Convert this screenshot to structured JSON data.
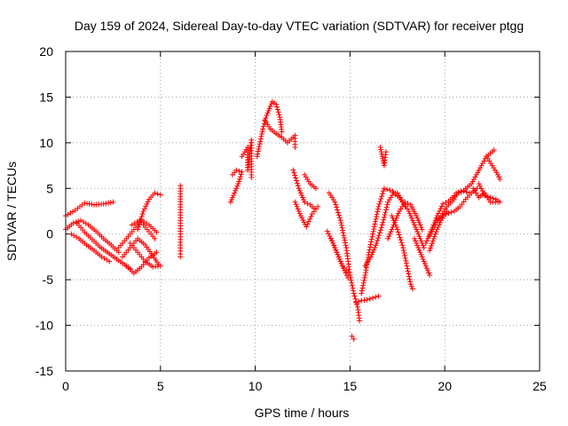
{
  "chart_data": {
    "type": "scatter",
    "title": "Day 159 of 2024, Sidereal Day-to-day VTEC variation (SDTVAR) for receiver ptgg",
    "xlabel": "GPS time / hours",
    "ylabel": "SDTVAR / TECUs",
    "xlim": [
      0,
      25
    ],
    "ylim": [
      -15,
      20
    ],
    "xticks": [
      0,
      5,
      10,
      15,
      20,
      25
    ],
    "yticks": [
      -15,
      -10,
      -5,
      0,
      5,
      10,
      15,
      20
    ],
    "xtick_labels": [
      "0",
      "5",
      "10",
      "15",
      "20",
      "25"
    ],
    "ytick_labels": [
      "-15",
      "-10",
      "-5",
      "0",
      "5",
      "10",
      "15",
      "20"
    ],
    "grid": true,
    "marker": "+",
    "series_color": "#ff0000",
    "segments": [
      [
        [
          0.0,
          2.0
        ],
        [
          0.5,
          2.6
        ],
        [
          1.0,
          3.4
        ],
        [
          1.5,
          3.2
        ],
        [
          2.0,
          3.3
        ],
        [
          2.5,
          3.5
        ]
      ],
      [
        [
          0.0,
          0.5
        ],
        [
          0.4,
          1.2
        ],
        [
          0.8,
          1.5
        ],
        [
          1.2,
          1.0
        ],
        [
          1.6,
          0.3
        ],
        [
          2.0,
          -0.5
        ],
        [
          2.4,
          -1.2
        ],
        [
          2.8,
          -2.0
        ]
      ],
      [
        [
          0.3,
          0.0
        ],
        [
          0.7,
          -0.5
        ],
        [
          1.1,
          -1.2
        ],
        [
          1.5,
          -1.8
        ],
        [
          1.9,
          -2.5
        ],
        [
          2.3,
          -3.0
        ]
      ],
      [
        [
          0.6,
          1.2
        ],
        [
          1.0,
          0.2
        ],
        [
          1.4,
          -0.6
        ],
        [
          1.8,
          -1.4
        ],
        [
          2.2,
          -2.0
        ],
        [
          2.6,
          -2.6
        ],
        [
          3.0,
          -3.2
        ],
        [
          3.4,
          -3.8
        ]
      ],
      [
        [
          2.8,
          -1.5
        ],
        [
          3.2,
          -0.5
        ],
        [
          3.6,
          0.5
        ],
        [
          4.0,
          1.5
        ],
        [
          4.4,
          1.0
        ],
        [
          4.8,
          0.2
        ]
      ],
      [
        [
          3.0,
          -2.5
        ],
        [
          3.4,
          -1.5
        ],
        [
          3.8,
          -0.5
        ],
        [
          4.2,
          -1.2
        ],
        [
          4.6,
          -2.4
        ],
        [
          4.9,
          -3.3
        ]
      ],
      [
        [
          3.2,
          -3.5
        ],
        [
          3.6,
          -4.3
        ],
        [
          4.0,
          -3.6
        ],
        [
          4.4,
          -2.6
        ],
        [
          4.8,
          -2.0
        ]
      ],
      [
        [
          3.4,
          -1.0
        ],
        [
          3.8,
          -2.0
        ],
        [
          4.2,
          -3.0
        ],
        [
          4.6,
          -3.6
        ],
        [
          5.0,
          -3.5
        ]
      ],
      [
        [
          3.8,
          0.5
        ],
        [
          4.1,
          2.5
        ],
        [
          4.4,
          3.8
        ],
        [
          4.7,
          4.5
        ],
        [
          5.0,
          4.3
        ]
      ],
      [
        [
          3.5,
          1.0
        ],
        [
          3.9,
          1.5
        ],
        [
          4.3,
          0.5
        ],
        [
          4.7,
          -0.5
        ]
      ],
      [
        [
          6.05,
          5.3
        ],
        [
          6.05,
          1.5
        ],
        [
          6.05,
          1.2
        ],
        [
          6.05,
          -1.2
        ],
        [
          6.05,
          -2.5
        ]
      ],
      [
        [
          8.7,
          3.5
        ],
        [
          8.9,
          4.5
        ],
        [
          9.1,
          5.5
        ],
        [
          9.3,
          6.8
        ],
        [
          9.0,
          7.0
        ],
        [
          8.8,
          6.5
        ]
      ],
      [
        [
          9.3,
          8.5
        ],
        [
          9.6,
          9.5
        ],
        [
          9.6,
          7.0
        ],
        [
          9.8,
          10.3
        ],
        [
          9.8,
          6.2
        ]
      ],
      [
        [
          10.1,
          8.5
        ],
        [
          10.4,
          11.5
        ],
        [
          10.6,
          13.0
        ],
        [
          10.9,
          14.5
        ],
        [
          11.1,
          14.2
        ],
        [
          11.3,
          12.8
        ],
        [
          11.4,
          11.2
        ]
      ],
      [
        [
          10.5,
          12.5
        ],
        [
          10.8,
          11.5
        ],
        [
          11.1,
          11.0
        ],
        [
          11.4,
          10.6
        ],
        [
          11.7,
          10.0
        ],
        [
          12.1,
          10.8
        ],
        [
          12.1,
          9.5
        ]
      ],
      [
        [
          12.0,
          7.0
        ],
        [
          12.3,
          5.0
        ],
        [
          12.6,
          3.5
        ],
        [
          12.9,
          3.2
        ],
        [
          13.1,
          2.8
        ]
      ],
      [
        [
          12.1,
          3.5
        ],
        [
          12.4,
          2.0
        ],
        [
          12.7,
          0.8
        ],
        [
          13.0,
          2.2
        ],
        [
          13.3,
          3.0
        ]
      ],
      [
        [
          12.6,
          6.5
        ],
        [
          12.9,
          5.5
        ],
        [
          13.2,
          5.0
        ]
      ],
      [
        [
          13.9,
          4.5
        ],
        [
          14.2,
          3.5
        ],
        [
          14.5,
          1.5
        ],
        [
          14.8,
          -1.5
        ],
        [
          15.0,
          -4.5
        ],
        [
          15.2,
          -6.5
        ],
        [
          15.4,
          -8.0
        ],
        [
          15.5,
          -9.5
        ]
      ],
      [
        [
          13.8,
          0.3
        ],
        [
          14.1,
          -1.0
        ],
        [
          14.4,
          -2.5
        ],
        [
          14.7,
          -4.0
        ],
        [
          14.9,
          -4.8
        ]
      ],
      [
        [
          14.0,
          -0.5
        ],
        [
          14.3,
          -2.0
        ],
        [
          14.6,
          -3.5
        ],
        [
          14.9,
          -4.2
        ]
      ],
      [
        [
          15.1,
          -11.2
        ],
        [
          15.2,
          -11.5
        ]
      ],
      [
        [
          15.3,
          -7.5
        ],
        [
          15.6,
          -7.3
        ],
        [
          15.9,
          -7.2
        ],
        [
          16.2,
          -7.0
        ],
        [
          16.5,
          -6.8
        ]
      ],
      [
        [
          15.6,
          -6.5
        ],
        [
          15.8,
          -4.5
        ],
        [
          16.0,
          -2.0
        ],
        [
          16.2,
          0.0
        ],
        [
          16.5,
          3.0
        ],
        [
          16.8,
          5.0
        ],
        [
          17.1,
          4.8
        ],
        [
          17.4,
          4.5
        ]
      ],
      [
        [
          15.8,
          -3.5
        ],
        [
          16.1,
          -2.5
        ],
        [
          16.4,
          -1.0
        ],
        [
          16.7,
          1.0
        ],
        [
          17.0,
          3.5
        ],
        [
          17.3,
          4.5
        ],
        [
          17.6,
          4.0
        ],
        [
          17.9,
          3.0
        ]
      ],
      [
        [
          16.6,
          9.5
        ],
        [
          16.7,
          8.5
        ],
        [
          16.8,
          7.5
        ],
        [
          16.9,
          9.0
        ]
      ],
      [
        [
          17.0,
          -0.5
        ],
        [
          17.3,
          1.0
        ],
        [
          17.6,
          2.5
        ],
        [
          17.9,
          3.5
        ],
        [
          18.2,
          3.2
        ],
        [
          18.5,
          2.0
        ],
        [
          18.8,
          0.5
        ]
      ],
      [
        [
          17.2,
          2.0
        ],
        [
          17.5,
          0.5
        ],
        [
          17.8,
          -1.5
        ],
        [
          18.0,
          -3.5
        ],
        [
          18.2,
          -5.5
        ],
        [
          18.3,
          -6.0
        ]
      ],
      [
        [
          17.5,
          4.5
        ],
        [
          17.8,
          3.5
        ],
        [
          18.1,
          2.5
        ],
        [
          18.4,
          1.0
        ],
        [
          18.7,
          -0.5
        ],
        [
          18.9,
          -1.5
        ]
      ],
      [
        [
          18.4,
          -0.5
        ],
        [
          18.7,
          -2.0
        ],
        [
          19.0,
          -3.5
        ],
        [
          19.2,
          -4.5
        ]
      ],
      [
        [
          19.0,
          -1.0
        ],
        [
          19.3,
          0.5
        ],
        [
          19.6,
          2.0
        ],
        [
          19.9,
          3.3
        ],
        [
          20.2,
          3.6
        ],
        [
          20.5,
          4.2
        ]
      ],
      [
        [
          19.2,
          -0.2
        ],
        [
          19.5,
          1.0
        ],
        [
          19.8,
          2.0
        ],
        [
          20.1,
          3.0
        ],
        [
          20.4,
          3.6
        ],
        [
          20.7,
          4.5
        ],
        [
          21.0,
          4.7
        ],
        [
          21.3,
          4.5
        ]
      ],
      [
        [
          19.6,
          1.5
        ],
        [
          19.9,
          2.0
        ],
        [
          20.2,
          2.3
        ],
        [
          20.5,
          2.5
        ],
        [
          20.8,
          3.0
        ],
        [
          21.1,
          3.8
        ],
        [
          21.4,
          4.5
        ],
        [
          21.7,
          5.0
        ]
      ],
      [
        [
          20.6,
          4.5
        ],
        [
          21.0,
          4.8
        ],
        [
          21.4,
          5.5
        ],
        [
          21.8,
          7.0
        ],
        [
          22.2,
          8.5
        ],
        [
          22.6,
          9.2
        ]
      ],
      [
        [
          21.5,
          5.0
        ],
        [
          21.8,
          4.0
        ],
        [
          22.1,
          4.5
        ],
        [
          22.4,
          3.5
        ],
        [
          22.8,
          3.5
        ]
      ],
      [
        [
          21.8,
          5.5
        ],
        [
          22.1,
          4.2
        ],
        [
          22.4,
          4.0
        ],
        [
          22.7,
          3.8
        ],
        [
          22.9,
          3.5
        ]
      ],
      [
        [
          22.2,
          8.5
        ],
        [
          22.5,
          7.5
        ],
        [
          22.8,
          6.5
        ],
        [
          22.9,
          6.0
        ]
      ],
      [
        [
          19.2,
          -1.8
        ],
        [
          19.5,
          0.0
        ],
        [
          19.8,
          1.5
        ],
        [
          20.1,
          2.5
        ]
      ]
    ]
  }
}
